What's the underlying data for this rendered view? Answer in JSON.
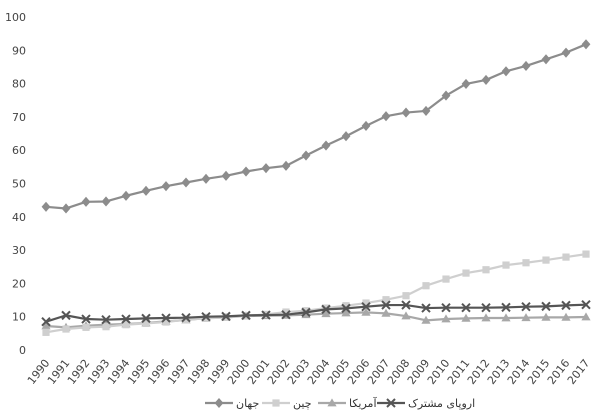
{
  "chart_data": {
    "type": "line",
    "title": "",
    "xlabel": "",
    "ylabel": "",
    "ylim": [
      0,
      100
    ],
    "yticks": [
      "0",
      "10",
      "20",
      "30",
      "40",
      "50",
      "60",
      "70",
      "80",
      "90",
      "100"
    ],
    "x": [
      "1990",
      "1991",
      "1992",
      "1993",
      "1994",
      "1995",
      "1996",
      "1997",
      "1998",
      "1999",
      "2000",
      "2001",
      "2002",
      "2003",
      "2004",
      "2005",
      "2006",
      "2007",
      "2008",
      "2009",
      "2010",
      "2011",
      "2012",
      "2013",
      "2014",
      "2015",
      "2016",
      "2017"
    ],
    "grid": false,
    "legend_position": "bottom",
    "series": [
      {
        "name": "جهان",
        "color": "#8c8c8c",
        "marker": "diamond",
        "values": [
          43.0,
          42.5,
          44.5,
          44.6,
          46.3,
          47.8,
          49.2,
          50.3,
          51.4,
          52.3,
          53.6,
          54.6,
          55.3,
          58.4,
          61.4,
          64.2,
          67.3,
          70.2,
          71.3,
          71.8,
          76.4,
          79.9,
          81.1,
          83.7,
          85.3,
          87.3,
          89.3,
          91.8
        ]
      },
      {
        "name": "چین",
        "color": "#cfcfcf",
        "marker": "square",
        "values": [
          5.3,
          6.3,
          6.8,
          7.0,
          7.6,
          8.0,
          8.4,
          9.1,
          9.5,
          9.8,
          10.2,
          10.7,
          11.4,
          11.8,
          12.6,
          13.3,
          14.1,
          15.1,
          16.3,
          19.3,
          21.3,
          23.1,
          24.1,
          25.5,
          26.2,
          27.0,
          27.9,
          28.8
        ]
      },
      {
        "name": "آمریکا",
        "color": "#a8a8a8",
        "marker": "triangle",
        "values": [
          7.2,
          6.8,
          7.3,
          7.6,
          7.8,
          8.1,
          8.6,
          9.0,
          9.6,
          9.8,
          10.2,
          10.3,
          10.4,
          10.6,
          10.9,
          11.1,
          11.3,
          11.0,
          10.2,
          8.9,
          9.3,
          9.5,
          9.6,
          9.6,
          9.7,
          9.8,
          9.8,
          9.9
        ]
      },
      {
        "name": "اروپای مشترک",
        "color": "#555555",
        "marker": "x",
        "values": [
          8.5,
          10.4,
          9.3,
          9.1,
          9.3,
          9.5,
          9.6,
          9.7,
          10.0,
          10.1,
          10.4,
          10.5,
          10.6,
          11.3,
          12.2,
          12.5,
          13.0,
          13.5,
          13.5,
          12.6,
          12.7,
          12.7,
          12.7,
          12.8,
          13.0,
          13.1,
          13.4,
          13.6
        ]
      }
    ]
  }
}
